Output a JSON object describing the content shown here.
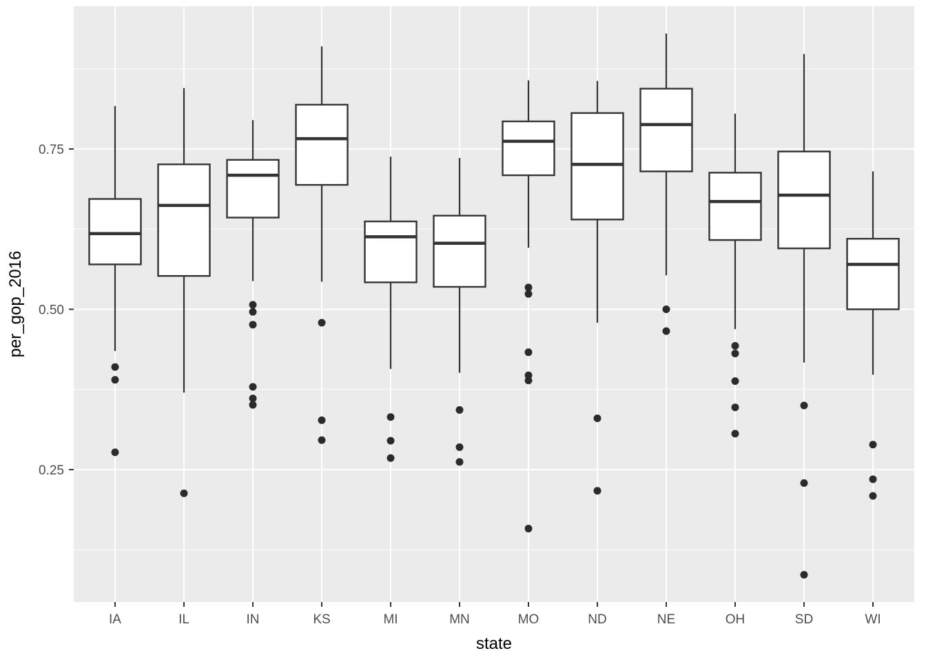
{
  "chart_data": {
    "type": "boxplot",
    "title": "",
    "xlabel": "state",
    "ylabel": "per_gop_2016",
    "y_major_ticks": [
      0.25,
      0.5,
      0.75
    ],
    "y_tick_labels": [
      "0.25",
      "0.50",
      "0.75"
    ],
    "y_minor_ticks": [
      0.125,
      0.375,
      0.625,
      0.875
    ],
    "ylim": [
      0.04,
      0.972
    ],
    "grid": true,
    "legend": "none",
    "panel_background": "#EBEBEB",
    "grid_color": "#FFFFFF",
    "box_fill": "#FFFFFF",
    "box_stroke": "#333333",
    "tick_label_color": "#4D4D4D",
    "axis_title_color": "#000000",
    "categories": [
      "IA",
      "IL",
      "IN",
      "KS",
      "MI",
      "MN",
      "MO",
      "ND",
      "NE",
      "OH",
      "SD",
      "WI"
    ],
    "series": [
      {
        "state": "IA",
        "whisker_low": 0.435,
        "q1": 0.57,
        "median": 0.618,
        "q3": 0.672,
        "whisker_high": 0.817,
        "outliers": [
          0.41,
          0.39,
          0.277
        ]
      },
      {
        "state": "IL",
        "whisker_low": 0.37,
        "q1": 0.552,
        "median": 0.662,
        "q3": 0.726,
        "whisker_high": 0.845,
        "outliers": [
          0.213
        ]
      },
      {
        "state": "IN",
        "whisker_low": 0.544,
        "q1": 0.643,
        "median": 0.709,
        "q3": 0.733,
        "whisker_high": 0.795,
        "outliers": [
          0.507,
          0.496,
          0.476,
          0.379,
          0.361,
          0.351
        ]
      },
      {
        "state": "KS",
        "whisker_low": 0.543,
        "q1": 0.694,
        "median": 0.766,
        "q3": 0.819,
        "whisker_high": 0.91,
        "outliers": [
          0.479,
          0.327,
          0.296
        ]
      },
      {
        "state": "MI",
        "whisker_low": 0.407,
        "q1": 0.542,
        "median": 0.613,
        "q3": 0.637,
        "whisker_high": 0.738,
        "outliers": [
          0.332,
          0.295,
          0.268
        ]
      },
      {
        "state": "MN",
        "whisker_low": 0.401,
        "q1": 0.535,
        "median": 0.603,
        "q3": 0.646,
        "whisker_high": 0.736,
        "outliers": [
          0.343,
          0.285,
          0.262
        ]
      },
      {
        "state": "MO",
        "whisker_low": 0.596,
        "q1": 0.709,
        "median": 0.762,
        "q3": 0.793,
        "whisker_high": 0.857,
        "outliers": [
          0.534,
          0.524,
          0.433,
          0.397,
          0.389,
          0.158
        ]
      },
      {
        "state": "ND",
        "whisker_low": 0.479,
        "q1": 0.64,
        "median": 0.726,
        "q3": 0.806,
        "whisker_high": 0.856,
        "outliers": [
          0.33,
          0.217
        ]
      },
      {
        "state": "NE",
        "whisker_low": 0.553,
        "q1": 0.715,
        "median": 0.788,
        "q3": 0.844,
        "whisker_high": 0.93,
        "outliers": [
          0.5,
          0.466
        ]
      },
      {
        "state": "OH",
        "whisker_low": 0.469,
        "q1": 0.608,
        "median": 0.668,
        "q3": 0.713,
        "whisker_high": 0.805,
        "outliers": [
          0.443,
          0.431,
          0.388,
          0.347,
          0.306
        ]
      },
      {
        "state": "SD",
        "whisker_low": 0.417,
        "q1": 0.595,
        "median": 0.678,
        "q3": 0.746,
        "whisker_high": 0.898,
        "outliers": [
          0.35,
          0.229,
          0.086
        ]
      },
      {
        "state": "WI",
        "whisker_low": 0.398,
        "q1": 0.5,
        "median": 0.57,
        "q3": 0.61,
        "whisker_high": 0.715,
        "outliers": [
          0.289,
          0.235,
          0.209
        ]
      }
    ]
  }
}
